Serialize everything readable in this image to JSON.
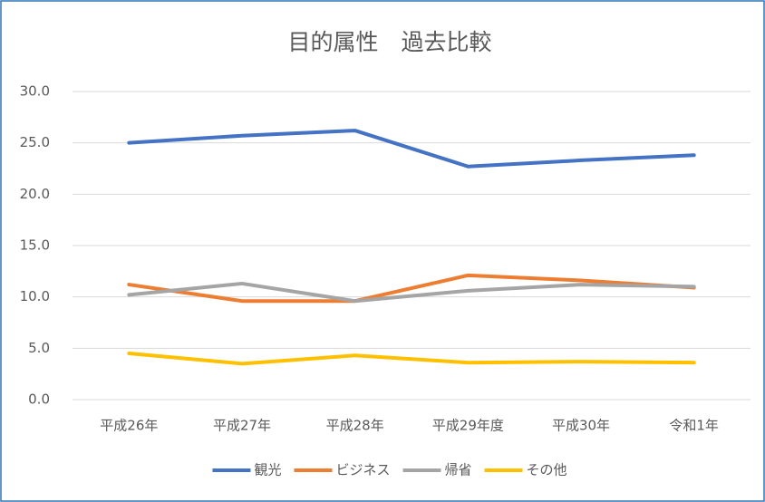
{
  "chart_data": {
    "type": "line",
    "title": "目的属性　過去比較",
    "categories": [
      "平成26年",
      "平成27年",
      "平成28年",
      "平成29年度",
      "平成30年",
      "令和1年"
    ],
    "series": [
      {
        "name": "観光",
        "color": "#4472c4",
        "values": [
          25.0,
          25.7,
          26.2,
          22.7,
          23.3,
          23.8
        ]
      },
      {
        "name": "ビジネス",
        "color": "#ed7d31",
        "values": [
          11.2,
          9.6,
          9.6,
          12.1,
          11.6,
          10.9
        ]
      },
      {
        "name": "帰省",
        "color": "#a5a5a5",
        "values": [
          10.2,
          11.3,
          9.6,
          10.6,
          11.2,
          11.0
        ]
      },
      {
        "name": "その他",
        "color": "#ffc000",
        "values": [
          4.5,
          3.5,
          4.3,
          3.6,
          3.7,
          3.6
        ]
      }
    ],
    "ylim": [
      0,
      30
    ],
    "yticks": [
      {
        "value": 0,
        "label": "0.0"
      },
      {
        "value": 5,
        "label": "5.0"
      },
      {
        "value": 10,
        "label": "10.0"
      },
      {
        "value": 15,
        "label": "15.0"
      },
      {
        "value": 20,
        "label": "20.0"
      },
      {
        "value": 25,
        "label": "25.0"
      },
      {
        "value": 30,
        "label": "30.0"
      }
    ],
    "grid": true,
    "legend": "bottom"
  }
}
